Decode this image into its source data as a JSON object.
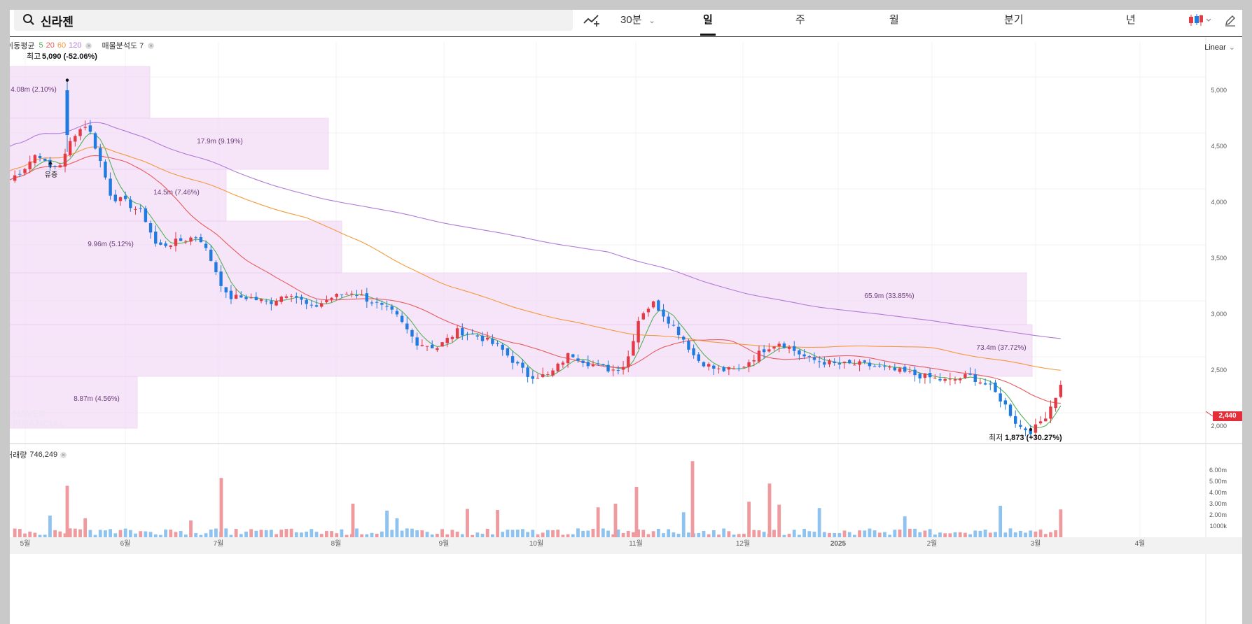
{
  "search": {
    "value": "신라젠"
  },
  "toolbar": {
    "timeframes": [
      {
        "label": "30분",
        "key": "30m",
        "active": false
      },
      {
        "label": "일",
        "key": "day",
        "active": true
      },
      {
        "label": "주",
        "key": "week",
        "active": false
      },
      {
        "label": "월",
        "key": "month",
        "active": false
      },
      {
        "label": "분기",
        "key": "quarter",
        "active": false
      },
      {
        "label": "년",
        "key": "year",
        "active": false
      }
    ],
    "draw_tool_icon": "line-draw-icon",
    "candle_type_icon": "candle-icon",
    "edit_icon": "pencil-icon"
  },
  "indicators": {
    "ma_label": "이동평균",
    "ma_periods": [
      {
        "value": "5",
        "color": "#53b257"
      },
      {
        "value": "20",
        "color": "#e85b5b"
      },
      {
        "value": "60",
        "color": "#f39a3a"
      },
      {
        "value": "120",
        "color": "#b07bd8"
      }
    ],
    "volume_profile_label": "매물분석도 7"
  },
  "scale_mode": "Linear",
  "price_axis": {
    "ticks": [
      "5,000",
      "4,500",
      "4,000",
      "3,500",
      "3,000",
      "2,500",
      "2,000"
    ]
  },
  "current_price": "2,440",
  "annotations": {
    "high_label": "최고",
    "high_value": "5,090 (-52.06%)",
    "low_label": "최저",
    "low_value": "1,873 (+30.27%)",
    "event_label": "유증"
  },
  "volume_profile": [
    {
      "label": "4.08m (2.10%)"
    },
    {
      "label": "17.9m (9.19%)"
    },
    {
      "label": "14.5m (7.46%)"
    },
    {
      "label": "9.96m (5.12%)"
    },
    {
      "label": "65.9m (33.85%)"
    },
    {
      "label": "73.4m (37.72%)"
    },
    {
      "label": "8.87m (4.56%)"
    }
  ],
  "volume_panel": {
    "label": "거래량",
    "value": "746,249",
    "ticks": [
      "6.00m",
      "5.00m",
      "4.00m",
      "3.00m",
      "2.00m",
      "1000k"
    ]
  },
  "x_axis": {
    "labels": [
      "5월",
      "6월",
      "7월",
      "8월",
      "9월",
      "10월",
      "11월",
      "12월",
      "2025",
      "2월",
      "3월",
      "4월"
    ]
  },
  "watermark": [
    "NAVER",
    "FINANCIAL"
  ],
  "colors": {
    "up": "#e23b46",
    "down": "#1f7be0",
    "vol_up": "#ef9a9e",
    "vol_down": "#8ec3f0",
    "profile": "#f3dcf7"
  }
}
